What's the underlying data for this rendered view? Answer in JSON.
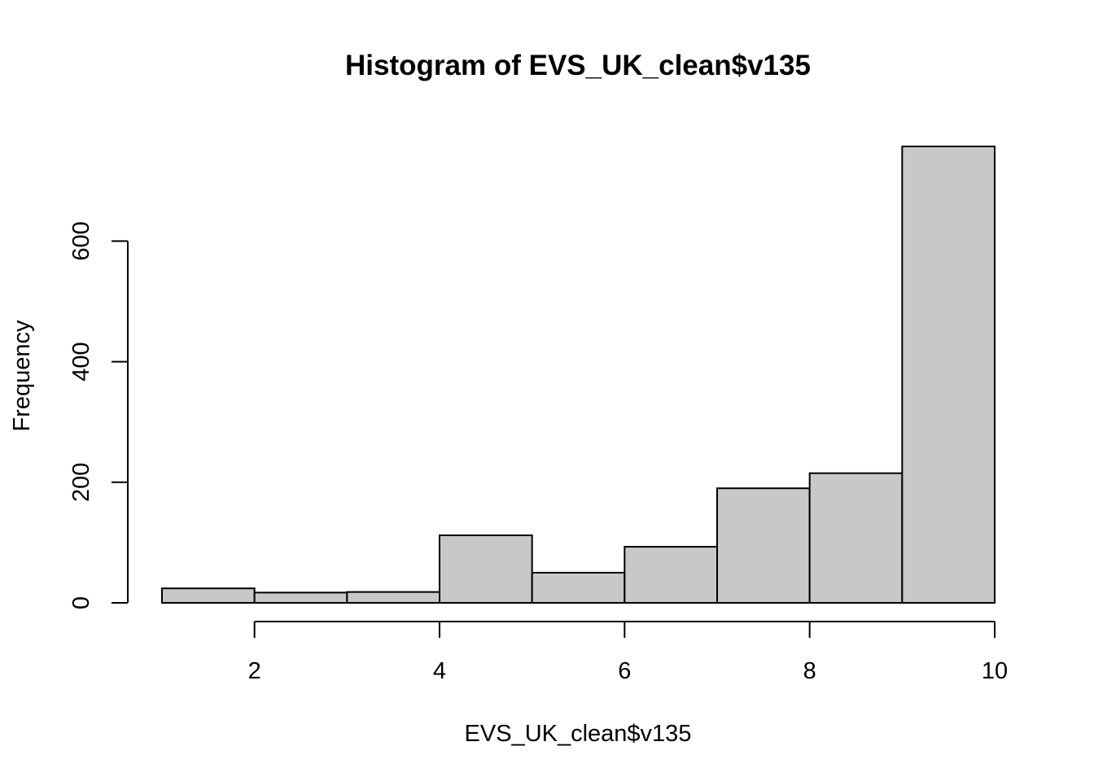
{
  "chart_data": {
    "type": "bar",
    "title": "Histogram of EVS_UK_clean$v135",
    "xlabel": "EVS_UK_clean$v135",
    "ylabel": "Frequency",
    "bins": [
      {
        "start": 1,
        "end": 2,
        "count": 24
      },
      {
        "start": 2,
        "end": 3,
        "count": 17
      },
      {
        "start": 3,
        "end": 4,
        "count": 18
      },
      {
        "start": 4,
        "end": 5,
        "count": 112
      },
      {
        "start": 5,
        "end": 6,
        "count": 50
      },
      {
        "start": 6,
        "end": 7,
        "count": 93
      },
      {
        "start": 7,
        "end": 8,
        "count": 190
      },
      {
        "start": 8,
        "end": 9,
        "count": 215
      },
      {
        "start": 9,
        "end": 10,
        "count": 757
      }
    ],
    "x_ticks": [
      2,
      4,
      6,
      8,
      10
    ],
    "y_ticks": [
      0,
      200,
      400,
      600
    ],
    "xlim": [
      1,
      10
    ],
    "ylim": [
      0,
      757
    ],
    "grid": false,
    "bar_color": "#c8c8c8",
    "border_color": "#000000"
  }
}
